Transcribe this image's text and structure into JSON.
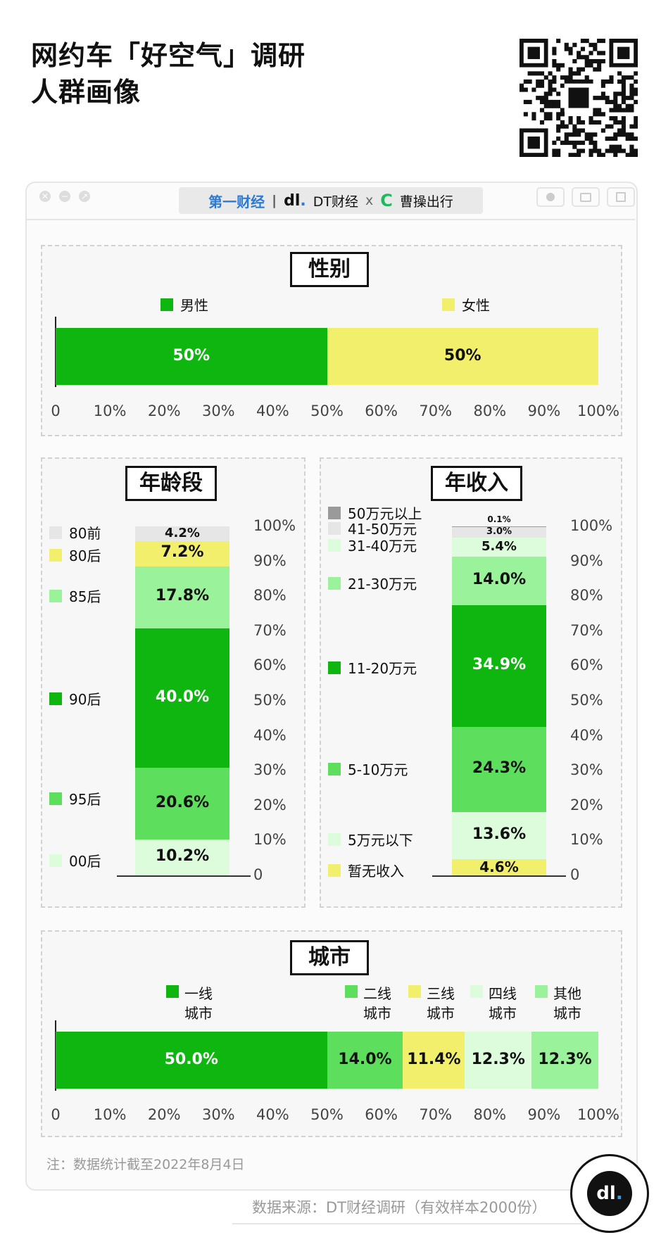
{
  "header": {
    "title_line1": "网约车「好空气」调研",
    "title_line2": "人群画像"
  },
  "brand": {
    "yicai": "第一财经",
    "dt": "DT财经",
    "x": "x",
    "partner": "曹操出行"
  },
  "colors": {
    "deep_green": "#0fb60f",
    "mid_green": "#5ddf5d",
    "light_green": "#9af29a",
    "pale_green": "#dcfcdc",
    "yellow": "#f2ef6c",
    "light_gray": "#e6e6e6",
    "dark_gray": "#9a9a9a"
  },
  "panels": {
    "gender_title": "性别",
    "age_title": "年龄段",
    "income_title": "年收入",
    "city_title": "城市"
  },
  "chart_data": [
    {
      "type": "bar",
      "orientation": "horizontal-stacked",
      "title": "性别",
      "series": [
        {
          "name": "男性",
          "value": 50,
          "label": "50%",
          "color": "#0fb60f"
        },
        {
          "name": "女性",
          "value": 50,
          "label": "50%",
          "color": "#f2ef6c"
        }
      ],
      "xticks": [
        "0",
        "10%",
        "20%",
        "30%",
        "40%",
        "50%",
        "60%",
        "70%",
        "80%",
        "90%",
        "100%"
      ],
      "xlim": [
        0,
        100
      ]
    },
    {
      "type": "bar",
      "orientation": "vertical-stacked",
      "title": "年龄段",
      "series": [
        {
          "name": "00后",
          "value": 10.2,
          "label": "10.2%",
          "color": "#dcfcdc"
        },
        {
          "name": "95后",
          "value": 20.6,
          "label": "20.6%",
          "color": "#5ddf5d"
        },
        {
          "name": "90后",
          "value": 40.0,
          "label": "40.0%",
          "color": "#0fb60f"
        },
        {
          "name": "85后",
          "value": 17.8,
          "label": "17.8%",
          "color": "#9af29a"
        },
        {
          "name": "80后",
          "value": 7.2,
          "label": "7.2%",
          "color": "#f2ef6c"
        },
        {
          "name": "80前",
          "value": 4.2,
          "label": "4.2%",
          "color": "#e6e6e6"
        }
      ],
      "yticks": [
        "0",
        "10%",
        "20%",
        "30%",
        "40%",
        "50%",
        "60%",
        "70%",
        "80%",
        "90%",
        "100%"
      ],
      "ylim": [
        0,
        100
      ]
    },
    {
      "type": "bar",
      "orientation": "vertical-stacked",
      "title": "年收入",
      "series": [
        {
          "name": "暂无收入",
          "value": 4.6,
          "label": "4.6%",
          "color": "#f2ef6c"
        },
        {
          "name": "5万元以下",
          "value": 13.6,
          "label": "13.6%",
          "color": "#dcfcdc"
        },
        {
          "name": "5-10万元",
          "value": 24.3,
          "label": "24.3%",
          "color": "#5ddf5d"
        },
        {
          "name": "11-20万元",
          "value": 34.9,
          "label": "34.9%",
          "color": "#0fb60f"
        },
        {
          "name": "21-30万元",
          "value": 14.0,
          "label": "14.0%",
          "color": "#9af29a"
        },
        {
          "name": "31-40万元",
          "value": 5.4,
          "label": "5.4%",
          "color": "#dcfcdc"
        },
        {
          "name": "41-50万元",
          "value": 3.0,
          "label": "3.0%",
          "color": "#e6e6e6"
        },
        {
          "name": "50万元以上",
          "value": 0.1,
          "label": "0.1%",
          "color": "#9a9a9a"
        }
      ],
      "yticks": [
        "0",
        "10%",
        "20%",
        "30%",
        "40%",
        "50%",
        "60%",
        "70%",
        "80%",
        "90%",
        "100%"
      ],
      "ylim": [
        0,
        100
      ]
    },
    {
      "type": "bar",
      "orientation": "horizontal-stacked",
      "title": "城市",
      "series": [
        {
          "name": "一线城市",
          "value": 50.0,
          "label": "50.0%",
          "color": "#0fb60f"
        },
        {
          "name": "二线城市",
          "value": 14.0,
          "label": "14.0%",
          "color": "#5ddf5d"
        },
        {
          "name": "三线城市",
          "value": 11.4,
          "label": "11.4%",
          "color": "#f2ef6c"
        },
        {
          "name": "四线城市",
          "value": 12.3,
          "label": "12.3%",
          "color": "#dcfcdc"
        },
        {
          "name": "其他城市",
          "value": 12.3,
          "label": "12.3%",
          "color": "#9af29a"
        }
      ],
      "xticks": [
        "0",
        "10%",
        "20%",
        "30%",
        "40%",
        "50%",
        "60%",
        "70%",
        "80%",
        "90%",
        "100%"
      ],
      "xlim": [
        0,
        100
      ]
    }
  ],
  "legend_text": {
    "gender": [
      "男性",
      "女性"
    ],
    "city_top": [
      "一线",
      "二线",
      "三线",
      "四线",
      "其他"
    ],
    "city_bottom": [
      "城市",
      "城市",
      "城市",
      "城市",
      "城市"
    ]
  },
  "footer": {
    "note": "注：数据统计截至2022年8月4日",
    "source": "数据来源：DT财经调研（有效样本2000份）"
  },
  "icons": [
    "close-icon",
    "minimize-icon",
    "maximize-icon",
    "record-icon",
    "camera-icon",
    "share-icon",
    "qr-code",
    "dt-logo"
  ]
}
